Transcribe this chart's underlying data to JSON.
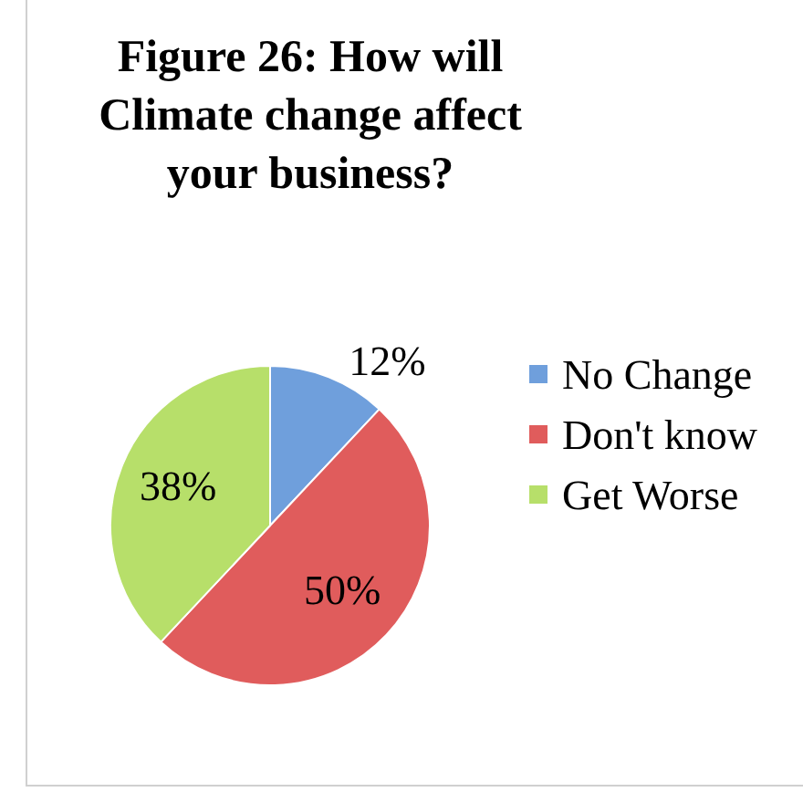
{
  "chart_data": {
    "type": "pie",
    "title": "Figure 26: How will Climate change affect your business?",
    "categories": [
      "No Change",
      "Don't know",
      "Get Worse"
    ],
    "values": [
      12,
      50,
      38
    ],
    "value_labels": [
      "12%",
      "50%",
      "38%"
    ],
    "colors": [
      "#6f9fdc",
      "#e05c5c",
      "#b7df6a"
    ],
    "legend": "right"
  }
}
